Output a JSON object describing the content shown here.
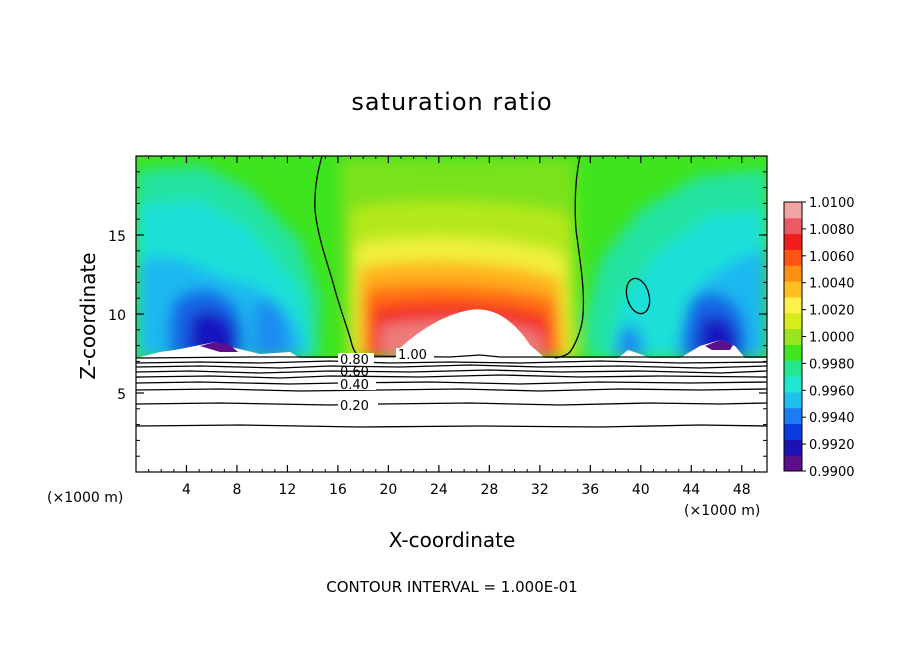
{
  "chart_data": {
    "type": "heatmap",
    "title": "saturation ratio",
    "xlabel": "X-coordinate",
    "ylabel": "Z-coordinate",
    "x_unit": "(×1000 m)",
    "y_unit": "(×1000 m)",
    "xlim": [
      0,
      50
    ],
    "ylim": [
      0,
      20
    ],
    "x_ticks": [
      4,
      8,
      12,
      16,
      20,
      24,
      28,
      32,
      36,
      40,
      44,
      48
    ],
    "y_ticks": [
      5,
      10,
      15
    ],
    "footer": "CONTOUR INTERVAL = 1.000E-01",
    "colorbar": {
      "levels": [
        "0.9900",
        "0.9920",
        "0.9940",
        "0.9960",
        "0.9980",
        "1.0000",
        "1.0020",
        "1.0040",
        "1.0060",
        "1.0080",
        "1.0100"
      ],
      "colors": [
        "#5b0f8a",
        "#1c12b4",
        "#0a3ae2",
        "#1c7cf2",
        "#1fbfee",
        "#1fe8d2",
        "#22e890",
        "#42e61e",
        "#9ae61e",
        "#d8ec1c",
        "#fff04a",
        "#ffc01e",
        "#ff8e14",
        "#ff5414",
        "#f21e1e",
        "#ea5a60",
        "#f2a4a4"
      ]
    },
    "contour_lines": [
      {
        "label": "1.00",
        "level": 1.0
      },
      {
        "label": "0.80",
        "level": 0.8
      },
      {
        "label": "0.60",
        "level": 0.6
      },
      {
        "label": "0.40",
        "level": 0.4
      },
      {
        "label": "0.20",
        "level": 0.2
      }
    ]
  }
}
